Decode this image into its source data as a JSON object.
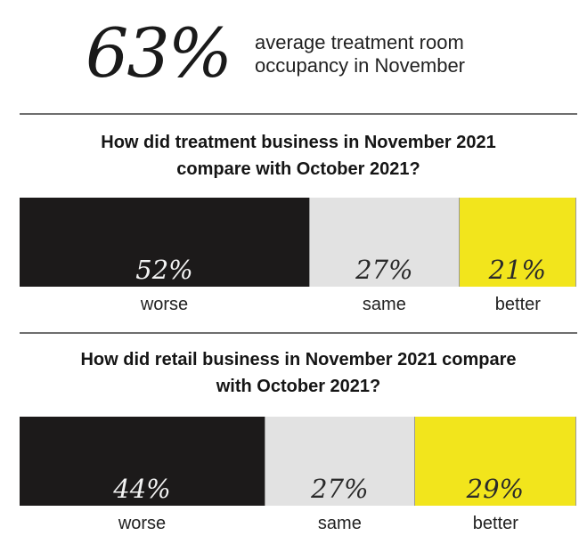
{
  "headline": {
    "stat": "63%",
    "caption_line1": "average treatment room",
    "caption_line2": "occupancy in November"
  },
  "colors": {
    "worse": "#1c1a1a",
    "same": "#e2e2e2",
    "better": "#f2e51c",
    "worse_text": "#f3f3f3",
    "same_text": "#2a2a2a",
    "better_text": "#2a2a2a"
  },
  "chart_data": [
    {
      "type": "bar",
      "orientation": "horizontal-stacked",
      "title_line1": "How did treatment business in November 2021",
      "title_line2": "compare with October 2021?",
      "categories": [
        "worse",
        "same",
        "better"
      ],
      "values": [
        52,
        27,
        21
      ],
      "value_labels": [
        "52%",
        "27%",
        "21%"
      ]
    },
    {
      "type": "bar",
      "orientation": "horizontal-stacked",
      "title_line1": "How did retail business in November 2021 compare",
      "title_line2": "with October 2021?",
      "categories": [
        "worse",
        "same",
        "better"
      ],
      "values": [
        44,
        27,
        29
      ],
      "value_labels": [
        "44%",
        "27%",
        "29%"
      ]
    }
  ]
}
